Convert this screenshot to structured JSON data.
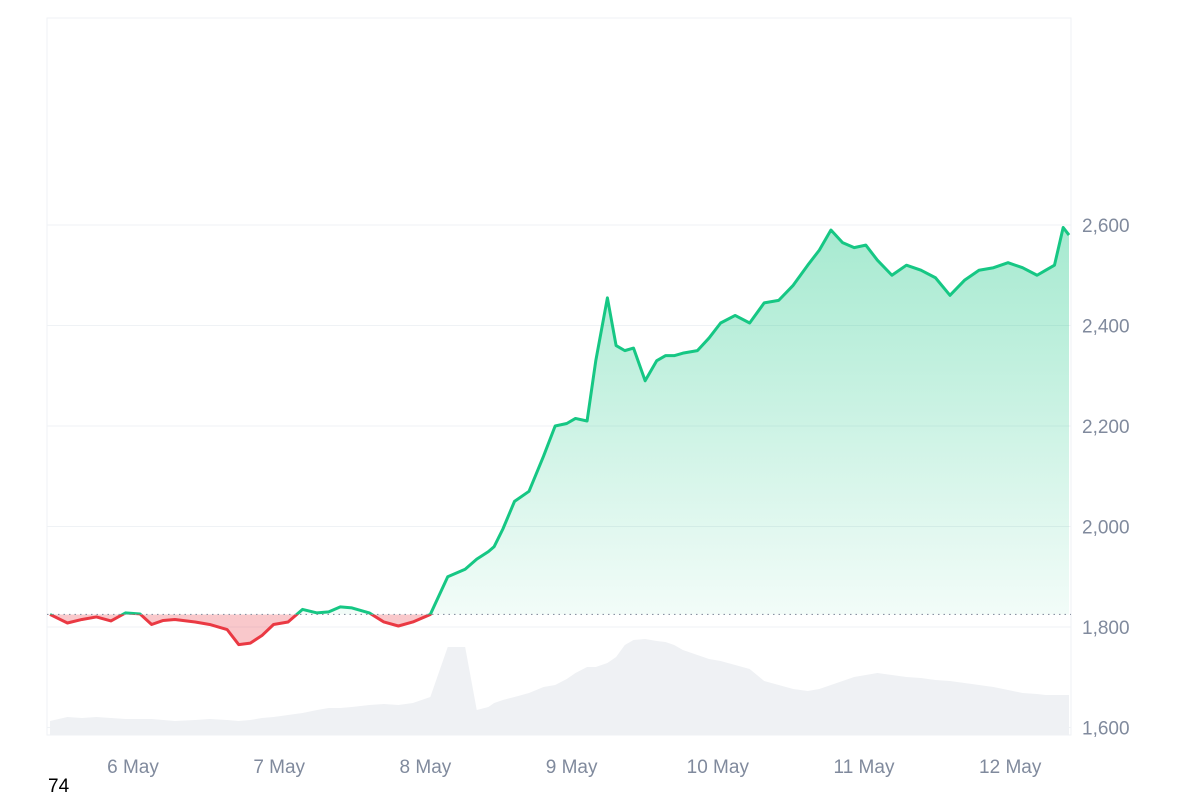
{
  "chart_data": {
    "type": "area",
    "title": "",
    "xlabel": "",
    "ylabel": "",
    "x_ticks": [
      "6 May",
      "7 May",
      "8 May",
      "9 May",
      "10 May",
      "11 May",
      "12 May"
    ],
    "y_ticks": [
      1600,
      1800,
      2000,
      2200,
      2400,
      2600
    ],
    "y_tick_labels": [
      "1,600",
      "1,800",
      "2,000",
      "2,200",
      "2,400",
      "2,600"
    ],
    "ylim": [
      1383,
      2807
    ],
    "xlim": [
      "5 May",
      "12 May"
    ],
    "baseline": 1825,
    "grid": true,
    "legend": "none",
    "colors": {
      "up": "#16c784",
      "down": "#ea3943",
      "volume": "#eff1f4",
      "grid": "#eff2f5",
      "baseline": "#8b93a3"
    },
    "series": [
      {
        "x": [
          "5 May",
          "5 May",
          "5 May",
          "5 May",
          "5 May",
          "5 May",
          "5 May",
          "5 May",
          "5 May",
          "5 May",
          "6 May",
          "6 May",
          "6 May",
          "6 May",
          "6 May",
          "6 May",
          "6 May",
          "6 May",
          "6 May",
          "6 May",
          "7 May",
          "7 May",
          "7 May",
          "7 May",
          "7 May",
          "7 May",
          "7 May",
          "7 May",
          "7 May",
          "7 May",
          "8 May",
          "8 May",
          "8 May",
          "8 May",
          "8 May",
          "8 May",
          "8 May",
          "8 May",
          "8 May",
          "8 May",
          "9 May",
          "9 May",
          "9 May",
          "9 May",
          "9 May",
          "9 May",
          "9 May",
          "9 May",
          "9 May",
          "9 May",
          "10 May",
          "10 May",
          "10 May",
          "10 May",
          "10 May",
          "10 May",
          "10 May",
          "10 May",
          "10 May",
          "10 May",
          "11 May",
          "11 May",
          "11 May",
          "11 May",
          "11 May",
          "11 May",
          "11 May",
          "11 May",
          "11 May",
          "11 May",
          "12 May",
          "12 May",
          "12 May",
          "12 May",
          "12 May",
          "12 May",
          "12 May",
          "12 May",
          "12 May",
          "12 May",
          "12 May"
        ],
        "t": [
          0,
          0.12,
          0.22,
          0.32,
          0.42,
          0.52,
          0.62,
          0.7,
          0.78,
          0.86,
          1,
          1.1,
          1.22,
          1.3,
          1.38,
          1.46,
          1.54,
          1.64,
          1.74,
          1.84,
          1.92,
          2.0,
          2.08,
          2.2,
          2.3,
          2.4,
          2.5,
          2.62,
          2.74,
          2.86,
          2.94,
          3.02,
          3.06,
          3.12,
          3.2,
          3.3,
          3.4,
          3.48,
          3.56,
          3.62,
          3.7,
          3.76,
          3.84,
          3.9,
          3.96,
          4.02,
          4.1,
          4.18,
          4.24,
          4.3,
          4.36,
          4.46,
          4.54,
          4.62,
          4.72,
          4.82,
          4.92,
          5.02,
          5.12,
          5.22,
          5.3,
          5.38,
          5.46,
          5.54,
          5.62,
          5.7,
          5.8,
          5.9,
          6.0,
          6.1,
          6.2,
          6.3,
          6.4,
          6.5,
          6.6,
          6.7,
          6.8,
          6.86,
          6.92,
          6.98,
          7.02
        ],
        "values": [
          1825,
          1808,
          1815,
          1820,
          1812,
          1828,
          1826,
          1805,
          1813,
          1815,
          1810,
          1805,
          1795,
          1765,
          1768,
          1783,
          1805,
          1810,
          1835,
          1828,
          1830,
          1840,
          1838,
          1828,
          1810,
          1802,
          1810,
          1825,
          1900,
          1915,
          1935,
          1950,
          1960,
          1995,
          2050,
          2070,
          2140,
          2200,
          2205,
          2215,
          2210,
          2330,
          2455,
          2360,
          2350,
          2355,
          2290,
          2330,
          2340,
          2340,
          2345,
          2350,
          2375,
          2405,
          2420,
          2405,
          2445,
          2450,
          2480,
          2520,
          2550,
          2590,
          2565,
          2555,
          2560,
          2530,
          2500,
          2520,
          2510,
          2495,
          2460,
          2490,
          2510,
          2515,
          2525,
          2515,
          2500,
          2510,
          2520,
          2595,
          2580
        ],
        "volume": [
          0.14,
          0.18,
          0.17,
          0.18,
          0.17,
          0.16,
          0.16,
          0.16,
          0.15,
          0.14,
          0.15,
          0.16,
          0.15,
          0.14,
          0.15,
          0.17,
          0.18,
          0.2,
          0.22,
          0.25,
          0.27,
          0.27,
          0.28,
          0.3,
          0.31,
          0.3,
          0.32,
          0.38,
          0.88,
          0.88,
          0.25,
          0.28,
          0.32,
          0.35,
          0.38,
          0.42,
          0.48,
          0.5,
          0.56,
          0.62,
          0.68,
          0.68,
          0.72,
          0.78,
          0.9,
          0.95,
          0.96,
          0.94,
          0.93,
          0.9,
          0.85,
          0.8,
          0.76,
          0.74,
          0.7,
          0.66,
          0.54,
          0.5,
          0.46,
          0.44,
          0.46,
          0.5,
          0.54,
          0.58,
          0.6,
          0.62,
          0.6,
          0.58,
          0.57,
          0.55,
          0.54,
          0.52,
          0.5,
          0.48,
          0.45,
          0.42,
          0.41,
          0.4,
          0.4,
          0.4,
          0.4
        ]
      }
    ]
  },
  "footer": {
    "corner_label": "74"
  }
}
